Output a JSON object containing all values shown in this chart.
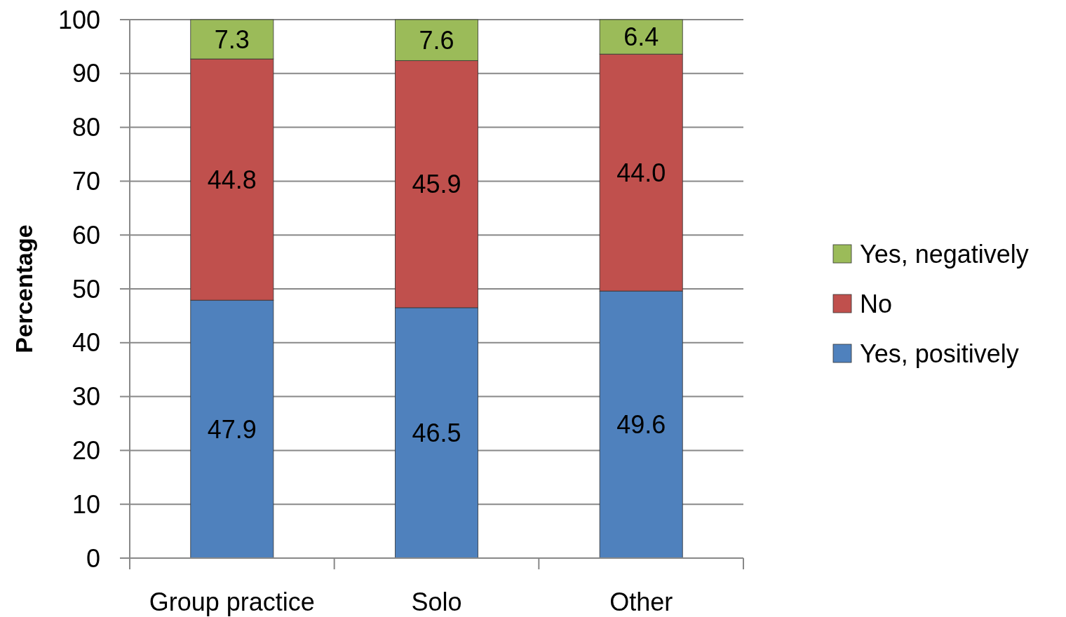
{
  "chart_data": {
    "type": "bar",
    "stacked": true,
    "ylabel": "Percentage",
    "categories": [
      "Group practice",
      "Solo",
      "Other"
    ],
    "series": [
      {
        "name": "Yes, positively",
        "color": "#4f81bd",
        "values": [
          47.9,
          46.5,
          49.6
        ],
        "value_labels": [
          "47.9",
          "46.5",
          "49.6"
        ]
      },
      {
        "name": "No",
        "color": "#c0504d",
        "values": [
          44.8,
          45.9,
          44.0
        ],
        "value_labels": [
          "44.8",
          "45.9",
          "44.0"
        ]
      },
      {
        "name": "Yes, negatively",
        "color": "#9bbb59",
        "values": [
          7.3,
          7.6,
          6.4
        ],
        "value_labels": [
          "7.3",
          "7.6",
          "6.4"
        ]
      }
    ],
    "ylim": [
      0,
      100
    ],
    "yticks": [
      0,
      10,
      20,
      30,
      40,
      50,
      60,
      70,
      80,
      90,
      100
    ],
    "grid": "y",
    "legend": "right"
  }
}
